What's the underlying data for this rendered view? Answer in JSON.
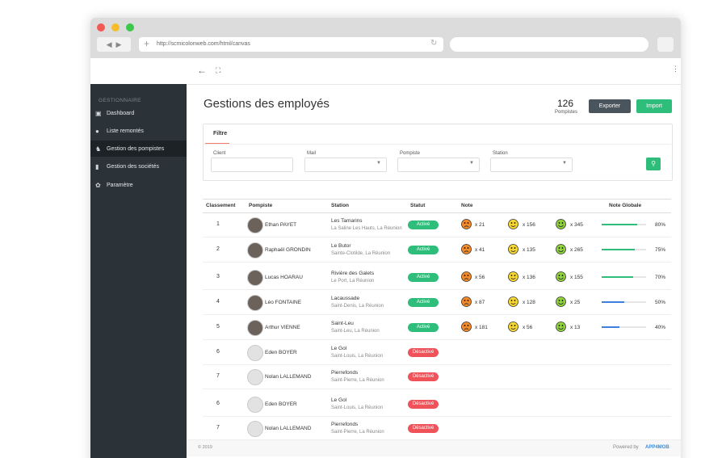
{
  "browser": {
    "url": "http://scmicolonweb.com/html/canvas"
  },
  "sidebar": {
    "section": "GESTIONNAIRE",
    "items": [
      "Dashboard",
      "Liste remontés",
      "Gestion des pompistes",
      "Gestion des sociétés",
      "Paramètre"
    ],
    "active": 2
  },
  "header": {
    "title": "Gestions des employés",
    "count": "126",
    "count_label": "Pompistes",
    "export": "Exporter",
    "import": "Import"
  },
  "filter": {
    "tab": "Filtre",
    "fields": [
      "Client",
      "Mail",
      "Pompiste",
      "Station"
    ]
  },
  "table": {
    "columns": [
      "Classement",
      "Pompiste",
      "Station",
      "Statut",
      "Note",
      "Note Globale"
    ],
    "rows": [
      {
        "rank": "1",
        "name": "Ethan PAYET",
        "station": "Les Tamarins",
        "place": "La Saline Les Hauts, La Réunion",
        "status": "Activé",
        "active": true,
        "bad": "x 21",
        "mid": "x 156",
        "good": "x 345",
        "score": 80,
        "score_label": "80%",
        "bar_color": "#2ebd7a"
      },
      {
        "rank": "2",
        "name": "Raphaël GRONDIN",
        "station": "Le Butor",
        "place": "Sainte-Clotilde, La Réunion",
        "status": "Activé",
        "active": true,
        "bad": "x 41",
        "mid": "x 135",
        "good": "x 265",
        "score": 75,
        "score_label": "75%",
        "bar_color": "#2ebd7a"
      },
      {
        "rank": "3",
        "name": "Lucas HOARAU",
        "station": "Rivière des Galets",
        "place": "Le Port, La Réunion",
        "status": "Activé",
        "active": true,
        "bad": "x 56",
        "mid": "x 136",
        "good": "x 155",
        "score": 70,
        "score_label": "70%",
        "bar_color": "#2ebd7a"
      },
      {
        "rank": "4",
        "name": "Léo FONTAINE",
        "station": "Lacaussade",
        "place": "Saint-Denis, La Réunion",
        "status": "Activé",
        "active": true,
        "bad": "x 87",
        "mid": "x 128",
        "good": "x 25",
        "score": 50,
        "score_label": "50%",
        "bar_color": "#3d7fdc"
      },
      {
        "rank": "5",
        "name": "Arthur VIENNE",
        "station": "Saint-Leu",
        "place": "Saint-Leu, La Réunion",
        "status": "Activé",
        "active": true,
        "bad": "x 181",
        "mid": "x 56",
        "good": "x 13",
        "score": 40,
        "score_label": "40%",
        "bar_color": "#3d7fdc"
      },
      {
        "rank": "6",
        "name": "Eden BOYER",
        "station": "Le Gol",
        "place": "Saint-Louis, La Réunion",
        "status": "Désactivé",
        "active": false
      },
      {
        "rank": "7",
        "name": "Nolan LALLEMAND",
        "station": "Pierrefonds",
        "place": "Saint-Pierre, La Réunion",
        "status": "Désactivé",
        "active": false
      },
      {
        "rank": "6",
        "name": "Eden BOYER",
        "station": "Le Gol",
        "place": "Saint-Louis, La Réunion",
        "status": "Désactivé",
        "active": false
      },
      {
        "rank": "7",
        "name": "Nolan LALLEMAND",
        "station": "Pierrefonds",
        "place": "Saint-Pierre, La Réunion",
        "status": "Désactivé",
        "active": false
      }
    ]
  },
  "footer": {
    "copyright": "© 2019",
    "powered": "Powered by",
    "brand": "APP4MOB"
  }
}
